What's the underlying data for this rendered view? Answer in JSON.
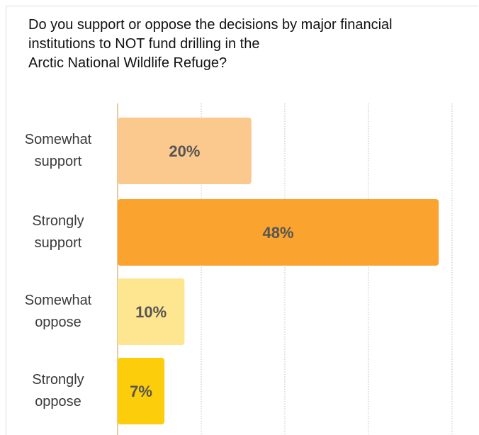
{
  "colors": {
    "somewhat_support": "#fbc98d",
    "strongly_support": "#fba32f",
    "somewhat_oppose": "#fde68f",
    "strongly_oppose": "#fccd0a",
    "label_text": "#3a3a3a",
    "value_text": "#555555",
    "gridline": "#bfbfbf",
    "axis": "#e7c9a3"
  },
  "title_lines": [
    "Do you support or oppose the decisions by major financial",
    "institutions to NOT fund drilling in the",
    "Arctic National Wildlife Refuge?"
  ],
  "chart_data": {
    "type": "bar",
    "orientation": "horizontal",
    "title": "Do you support or oppose the decisions by major financial institutions to NOT fund drilling in the Arctic National Wildlife Refuge?",
    "categories": [
      [
        "Somewhat",
        "support"
      ],
      [
        "Strongly",
        "support"
      ],
      [
        "Somewhat",
        "oppose"
      ],
      [
        "Strongly",
        "oppose"
      ]
    ],
    "values": [
      20,
      48,
      10,
      7
    ],
    "value_labels": [
      "20%",
      "48%",
      "10%",
      "7%"
    ],
    "xlim": [
      0,
      50
    ],
    "grid": true,
    "gridline_values": [
      12.5,
      25,
      37.5,
      50
    ]
  }
}
